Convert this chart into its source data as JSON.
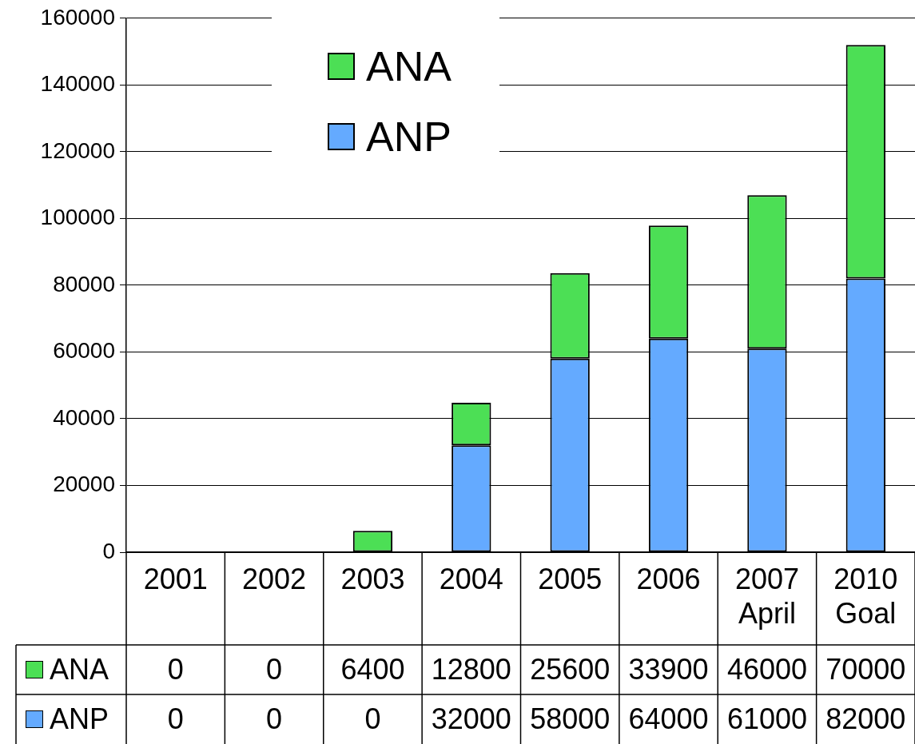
{
  "chart_data": {
    "type": "bar",
    "stacked": true,
    "categories": [
      "2001",
      "2002",
      "2003",
      "2004",
      "2005",
      "2006",
      "2007 April",
      "2010 Goal"
    ],
    "series": [
      {
        "name": "ANP",
        "color": "#64aaff",
        "values": [
          0,
          0,
          0,
          32000,
          58000,
          64000,
          61000,
          82000
        ]
      },
      {
        "name": "ANA",
        "color": "#4cdf55",
        "values": [
          0,
          0,
          6400,
          12800,
          25600,
          33900,
          46000,
          70000
        ]
      }
    ],
    "ylim": [
      0,
      160000
    ],
    "yticks": [
      0,
      20000,
      40000,
      60000,
      80000,
      100000,
      120000,
      140000,
      160000
    ],
    "grid": "y",
    "legend": "top left",
    "data_labels": true
  }
}
